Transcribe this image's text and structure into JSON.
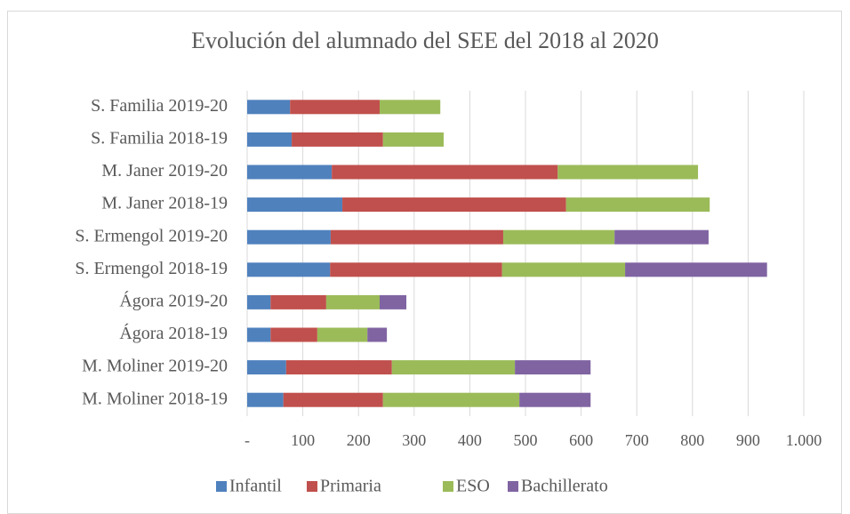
{
  "chart_data": {
    "type": "bar",
    "orientation": "horizontal",
    "stacked": true,
    "title": "Evolución del alumnado del SEE del 2018 al 2020",
    "categories": [
      "S. Familia 2019-20",
      "S. Familia 2018-19",
      "M. Janer 2019-20",
      "M. Janer 2018-19",
      "S. Ermengol 2019-20",
      "S. Ermengol 2018-19",
      "Ágora 2019-20",
      "Ágora 2018-19",
      "M. Moliner 2019-20",
      "M. Moliner 2018-19"
    ],
    "series": [
      {
        "name": "Infantil",
        "color": "#4f81bd",
        "values": [
          77,
          80,
          152,
          171,
          150,
          149,
          42,
          42,
          70,
          65
        ]
      },
      {
        "name": "Primaria",
        "color": "#c0504d",
        "values": [
          161,
          164,
          406,
          402,
          310,
          309,
          100,
          84,
          190,
          179
        ]
      },
      {
        "name": "ESO",
        "color": "#9bbb59",
        "values": [
          109,
          109,
          252,
          258,
          200,
          221,
          96,
          90,
          221,
          245
        ]
      },
      {
        "name": "Bachillerato",
        "color": "#8064a2",
        "values": [
          0,
          0,
          0,
          0,
          169,
          255,
          48,
          35,
          136,
          128
        ]
      }
    ],
    "xlim": [
      0,
      1000
    ],
    "xticks": [
      {
        "value": 0,
        "label": "-"
      },
      100,
      200,
      300,
      400,
      500,
      600,
      700,
      800,
      900,
      {
        "value": 1000,
        "label": "1.000"
      }
    ],
    "grid": true,
    "legend": "bottom"
  }
}
